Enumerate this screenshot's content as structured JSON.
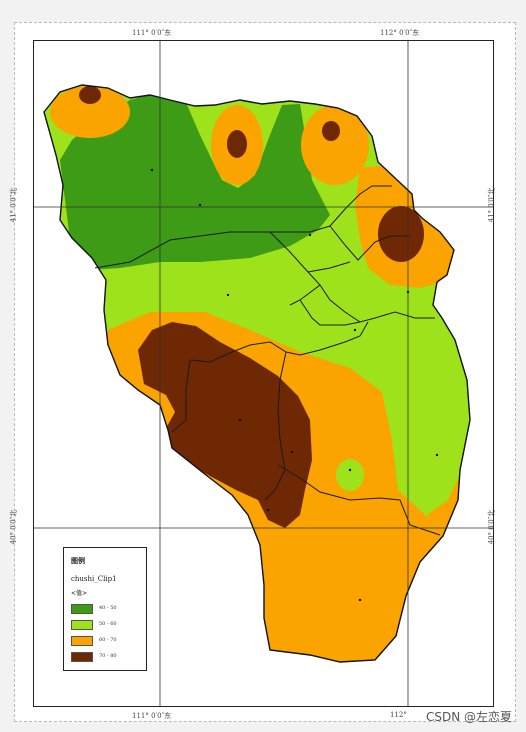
{
  "coords": {
    "top_left": "111° 0′0″东",
    "top_right": "112° 0′0″东",
    "bottom_left": "111° 0′0″东",
    "bottom_right": "112°",
    "left_upper": "41° 0′0″北",
    "left_lower": "40° 0′0″北",
    "right_upper": "41° 0′0″北",
    "right_lower": "40° 0′0″北"
  },
  "legend": {
    "title": "图例",
    "layer": "chushi_Clip1",
    "field": "<值>",
    "classes": [
      {
        "label": "40 - 50",
        "color": "#3e9b16"
      },
      {
        "label": "50 - 60",
        "color": "#9ee21c"
      },
      {
        "label": "60 - 70",
        "color": "#fba400"
      },
      {
        "label": "70 - 80",
        "color": "#6e2804"
      }
    ]
  },
  "watermark": "CSDN @左恋夏"
}
